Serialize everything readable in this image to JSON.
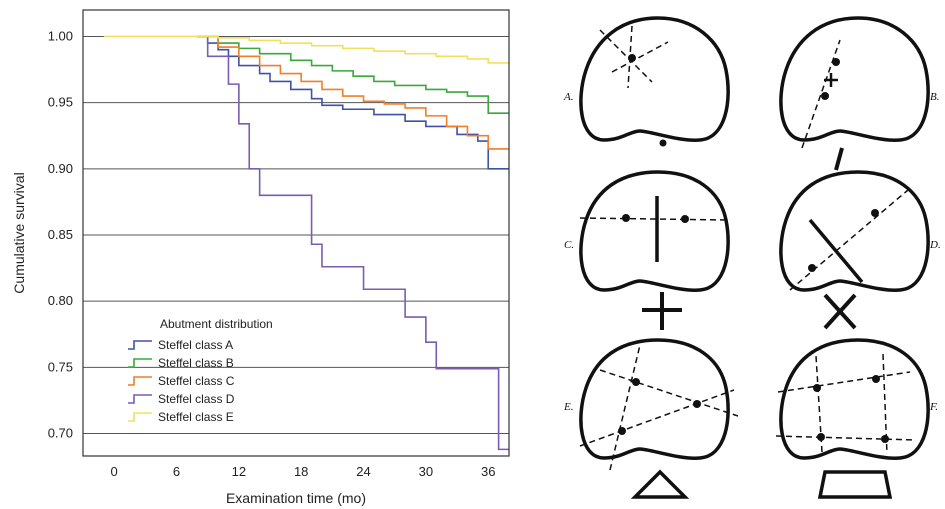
{
  "chart_data": {
    "type": "line",
    "step": true,
    "xlabel": "Examination time (mo)",
    "ylabel": "Cumulative survival",
    "xlim": [
      -3,
      38
    ],
    "ylim": [
      0.683,
      1.02
    ],
    "x_ticks": [
      0,
      6,
      12,
      18,
      24,
      30,
      36
    ],
    "x_tick_labels": [
      "0",
      "6",
      "12",
      "18",
      "24",
      "30",
      "36"
    ],
    "y_ticks": [
      0.7,
      0.75,
      0.8,
      0.85,
      0.9,
      0.95,
      1.0
    ],
    "y_tick_labels": [
      "0.70",
      "0.75",
      "0.80",
      "0.85",
      "0.90",
      "0.95",
      "1.00"
    ],
    "grid": "horizontal",
    "legend_title": "Abutment distribution",
    "legend_position": "bottom-left",
    "series": [
      {
        "name": "Steffel class A",
        "color": "#3f51a8",
        "x": [
          8,
          9,
          10,
          11,
          12,
          14,
          15,
          17,
          19,
          20,
          22,
          25,
          28,
          30,
          33,
          35,
          36,
          38
        ],
        "y": [
          1.0,
          0.995,
          0.99,
          0.985,
          0.978,
          0.972,
          0.966,
          0.96,
          0.953,
          0.948,
          0.945,
          0.941,
          0.936,
          0.932,
          0.926,
          0.921,
          0.9,
          0.9
        ]
      },
      {
        "name": "Steffel class B",
        "color": "#3aa83a",
        "x": [
          8,
          10,
          12,
          14,
          17,
          19,
          21,
          23,
          25,
          27,
          30,
          32,
          34,
          36,
          38
        ],
        "y": [
          1.0,
          0.995,
          0.991,
          0.987,
          0.982,
          0.978,
          0.974,
          0.97,
          0.966,
          0.963,
          0.96,
          0.958,
          0.955,
          0.942,
          0.942
        ]
      },
      {
        "name": "Steffel class C",
        "color": "#f07f28",
        "x": [
          8,
          10,
          12,
          14,
          16,
          18,
          20,
          22,
          24,
          26,
          28,
          30,
          32,
          34,
          36,
          38
        ],
        "y": [
          1.0,
          0.992,
          0.985,
          0.978,
          0.972,
          0.966,
          0.96,
          0.955,
          0.951,
          0.949,
          0.946,
          0.94,
          0.932,
          0.925,
          0.915,
          0.915
        ]
      },
      {
        "name": "Steffel class D",
        "color": "#7a5cb2",
        "x": [
          8,
          9,
          11,
          12,
          13,
          14,
          15,
          19,
          20,
          21,
          24,
          27,
          28,
          30,
          31,
          36,
          37,
          38
        ],
        "y": [
          1.0,
          0.985,
          0.964,
          0.934,
          0.9,
          0.88,
          0.88,
          0.843,
          0.826,
          0.826,
          0.809,
          0.809,
          0.788,
          0.769,
          0.749,
          0.749,
          0.688,
          0.688
        ]
      },
      {
        "name": "Steffel class E",
        "color": "#f0e060",
        "x": [
          -1,
          10,
          13,
          16,
          19,
          22,
          25,
          28,
          31,
          34,
          36,
          38
        ],
        "y": [
          1.0,
          0.999,
          0.997,
          0.995,
          0.993,
          0.991,
          0.989,
          0.987,
          0.985,
          0.983,
          0.98,
          0.98
        ]
      }
    ]
  },
  "diagrams": {
    "panel_labels": [
      "A.",
      "B.",
      "C.",
      "D.",
      "E.",
      "F."
    ]
  }
}
